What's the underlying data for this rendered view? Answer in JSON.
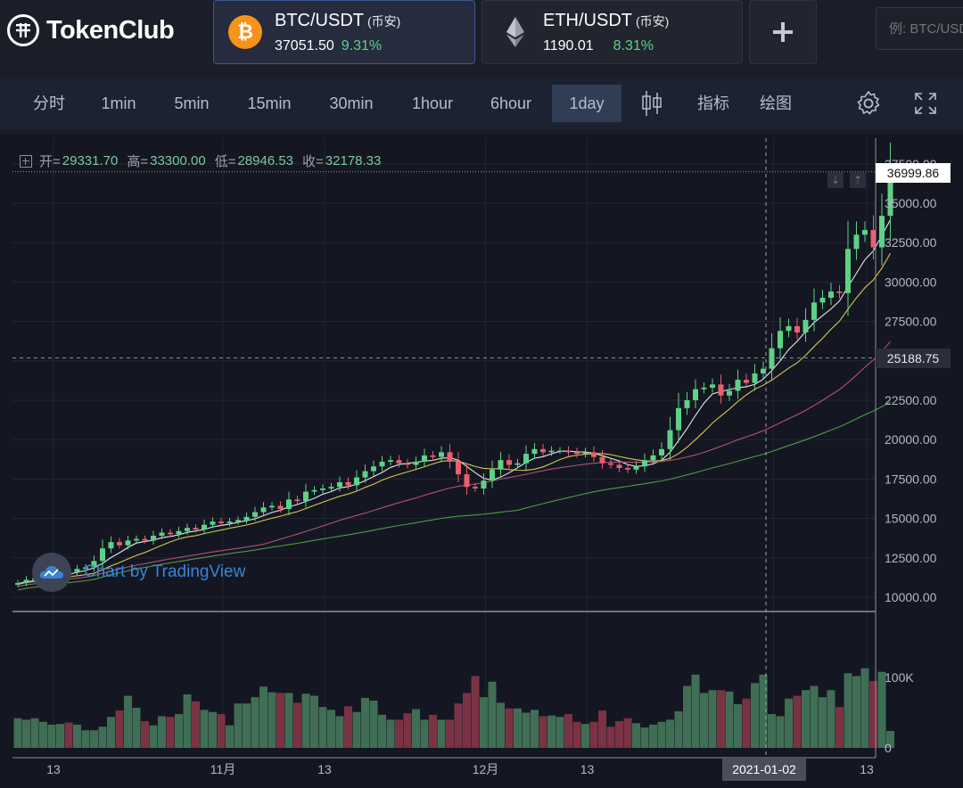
{
  "brand": {
    "name": "TokenClub"
  },
  "pairs": [
    {
      "name": "BTC/USDT",
      "exchange": "(币安)",
      "price": "37051.50",
      "change": "9.31%",
      "coin_icon": "bitcoin-icon",
      "coin_color": "#f7931a"
    },
    {
      "name": "ETH/USDT",
      "exchange": "(币安)",
      "price": "1190.01",
      "change": "8.31%",
      "coin_icon": "ethereum-icon",
      "coin_color": "#8a8f9c"
    }
  ],
  "add_button": {
    "icon": "plus-icon"
  },
  "search": {
    "placeholder": "例: BTC/USDT"
  },
  "toolbar": {
    "intervals": [
      "分时",
      "1min",
      "5min",
      "15min",
      "30min",
      "1hour",
      "6hour",
      "1day"
    ],
    "active_interval": "1day",
    "indicators_label": "指标",
    "draw_label": "绘图",
    "icons": [
      "candlestick-type-icon",
      "settings-gear-icon",
      "fullscreen-icon"
    ]
  },
  "ohlc_legend": {
    "open_label": "开=",
    "open": "29331.70",
    "high_label": "高=",
    "high": "33300.00",
    "low_label": "低=",
    "low": "28946.53",
    "close_label": "收=",
    "close": "32178.33"
  },
  "watermark": {
    "text": "Chart by TradingView"
  },
  "chart_data": {
    "type": "candlestick",
    "price_axis": {
      "ticks": [
        "37500.00",
        "35000.00",
        "32500.00",
        "30000.00",
        "27500.00",
        "25000.00",
        "22500.00",
        "20000.00",
        "17500.00",
        "15000.00",
        "12500.00",
        "10000.00"
      ],
      "range": [
        9500,
        38500
      ]
    },
    "volume_axis": {
      "ticks": [
        "100K",
        "0"
      ],
      "max": 160
    },
    "x_axis": {
      "ticks": [
        "13",
        "11月",
        "13",
        "12月",
        "13",
        "2021-01-02",
        "13"
      ]
    },
    "current_price": "36999.86",
    "crosshair_price": "25188.75",
    "crosshair_date": "2021-01-02",
    "colors": {
      "up": "#5fd186",
      "down": "#e8606e",
      "ma5": "#e6e8ee",
      "ma10": "#d6c64e",
      "ma30": "#b44e78",
      "ma60": "#4e9a45"
    },
    "moving_averages": [
      "ma5",
      "ma10",
      "ma30",
      "ma60"
    ],
    "closes": [
      10900,
      11100,
      11200,
      11300,
      11500,
      11700,
      11600,
      11800,
      11900,
      12300,
      13100,
      13500,
      13300,
      13600,
      13700,
      13600,
      13900,
      14100,
      14000,
      14200,
      14400,
      14300,
      14600,
      14800,
      14700,
      14800,
      14900,
      15100,
      15400,
      15700,
      15800,
      15600,
      16200,
      16100,
      16700,
      16800,
      16900,
      17000,
      17300,
      17100,
      17600,
      18000,
      18300,
      18600,
      18700,
      18500,
      18400,
      18600,
      19000,
      18900,
      19200,
      18600,
      17800,
      17000,
      16900,
      17400,
      18100,
      18700,
      18400,
      18500,
      19100,
      19400,
      19200,
      19300,
      19300,
      19200,
      19100,
      19200,
      18900,
      18500,
      18400,
      18200,
      18100,
      18300,
      18700,
      19000,
      19400,
      20600,
      22000,
      22500,
      23200,
      23300,
      23500,
      22800,
      23100,
      23800,
      23600,
      24200,
      24500,
      25800,
      26900,
      27200,
      26800,
      27600,
      28700,
      29000,
      29400,
      29300,
      32100,
      33000,
      33300,
      32200,
      34200,
      36999
    ],
    "volumes": [
      42,
      40,
      42,
      37,
      33,
      34,
      36,
      33,
      25,
      25,
      30,
      44,
      53,
      74,
      57,
      38,
      32,
      45,
      44,
      48,
      76,
      66,
      54,
      51,
      48,
      32,
      63,
      63,
      72,
      87,
      79,
      78,
      78,
      64,
      77,
      74,
      58,
      54,
      45,
      59,
      51,
      71,
      67,
      47,
      40,
      40,
      49,
      55,
      40,
      47,
      40,
      40,
      63,
      78,
      102,
      72,
      94,
      64,
      56,
      56,
      50,
      54,
      45,
      46,
      44,
      48,
      37,
      34,
      37,
      53,
      30,
      38,
      42,
      35,
      29,
      33,
      37,
      40,
      52,
      88,
      104,
      78,
      82,
      82,
      80,
      62,
      70,
      92,
      104,
      48,
      45,
      70,
      74,
      82,
      88,
      72,
      82,
      58,
      106,
      102,
      113,
      95,
      108,
      24
    ]
  }
}
